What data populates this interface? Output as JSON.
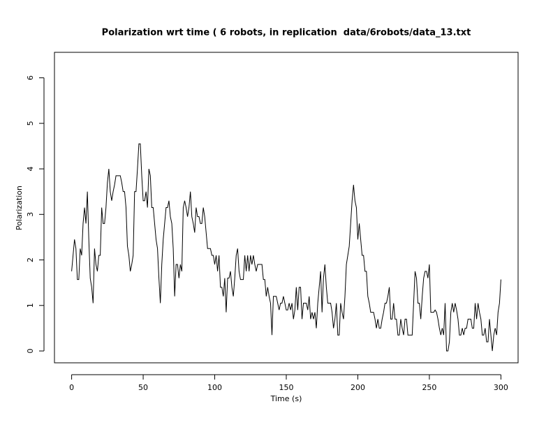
{
  "chart_data": {
    "type": "line",
    "title": "Polarization wrt time ( 6 robots, in replication  data/6robots/data_13.txt",
    "x_label": "Time (s)",
    "y_label": "Polarization",
    "color": "#000000",
    "xlim": [
      -12,
      312
    ],
    "ylim": [
      -0.26,
      6.56
    ],
    "xticks": [
      0,
      50,
      100,
      150,
      200,
      250,
      300
    ],
    "yticks": [
      0,
      1,
      2,
      3,
      4,
      5,
      6
    ],
    "x": [
      0,
      1,
      2,
      3,
      4,
      5,
      6,
      7,
      8,
      9,
      10,
      11,
      12,
      13,
      14,
      15,
      16,
      17,
      18,
      19,
      20,
      21,
      22,
      23,
      24,
      25,
      26,
      27,
      28,
      29,
      30,
      31,
      32,
      33,
      34,
      35,
      36,
      37,
      38,
      39,
      40,
      41,
      42,
      43,
      44,
      45,
      46,
      47,
      48,
      49,
      50,
      51,
      52,
      53,
      54,
      55,
      56,
      57,
      58,
      59,
      60,
      61,
      62,
      63,
      64,
      65,
      66,
      67,
      68,
      69,
      70,
      71,
      72,
      73,
      74,
      75,
      76,
      77,
      78,
      79,
      80,
      81,
      82,
      83,
      84,
      85,
      86,
      87,
      88,
      89,
      90,
      91,
      92,
      93,
      94,
      95,
      96,
      97,
      98,
      99,
      100,
      101,
      102,
      103,
      104,
      105,
      106,
      107,
      108,
      109,
      110,
      111,
      112,
      113,
      114,
      115,
      116,
      117,
      118,
      119,
      120,
      121,
      122,
      123,
      124,
      125,
      126,
      127,
      128,
      129,
      130,
      131,
      132,
      133,
      134,
      135,
      136,
      137,
      138,
      139,
      140,
      141,
      142,
      143,
      144,
      145,
      146,
      147,
      148,
      149,
      150,
      151,
      152,
      153,
      154,
      155,
      156,
      157,
      158,
      159,
      160,
      161,
      162,
      163,
      164,
      165,
      166,
      167,
      168,
      169,
      170,
      171,
      172,
      173,
      174,
      175,
      176,
      177,
      178,
      179,
      180,
      181,
      182,
      183,
      184,
      185,
      186,
      187,
      188,
      189,
      190,
      191,
      192,
      193,
      194,
      195,
      196,
      197,
      198,
      199,
      200,
      201,
      202,
      203,
      204,
      205,
      206,
      207,
      208,
      209,
      210,
      211,
      212,
      213,
      214,
      215,
      216,
      217,
      218,
      219,
      220,
      221,
      222,
      223,
      224,
      225,
      226,
      227,
      228,
      229,
      230,
      231,
      232,
      233,
      234,
      235,
      236,
      237,
      238,
      239,
      240,
      241,
      242,
      243,
      244,
      245,
      246,
      247,
      248,
      249,
      250,
      251,
      252,
      253,
      254,
      255,
      256,
      257,
      258,
      259,
      260,
      261,
      262,
      263,
      264,
      265,
      266,
      267,
      268,
      269,
      270,
      271,
      272,
      273,
      274,
      275,
      276,
      277,
      278,
      279,
      280,
      281,
      282,
      283,
      284,
      285,
      286,
      287,
      288,
      289,
      290,
      291,
      292,
      293,
      294,
      295,
      296,
      297,
      298,
      299,
      300
    ],
    "values": [
      1.75,
      2.1,
      2.45,
      2.25,
      1.57,
      1.57,
      2.25,
      2.1,
      2.8,
      3.15,
      2.8,
      3.5,
      2.45,
      1.6,
      1.4,
      1.05,
      2.25,
      1.9,
      1.75,
      2.1,
      2.1,
      3.15,
      2.8,
      2.8,
      3.15,
      3.7,
      4.0,
      3.5,
      3.3,
      3.5,
      3.65,
      3.85,
      3.85,
      3.85,
      3.85,
      3.7,
      3.5,
      3.5,
      3.15,
      2.3,
      2.1,
      1.75,
      1.9,
      2.1,
      3.5,
      3.5,
      4.0,
      4.55,
      4.55,
      3.85,
      3.3,
      3.3,
      3.5,
      3.15,
      4.0,
      3.85,
      3.15,
      3.15,
      2.8,
      2.45,
      2.25,
      1.6,
      1.05,
      1.9,
      2.45,
      2.8,
      3.15,
      3.15,
      3.3,
      2.95,
      2.8,
      2.25,
      1.2,
      1.9,
      1.9,
      1.6,
      1.9,
      1.75,
      3.15,
      3.3,
      3.15,
      2.95,
      3.15,
      3.5,
      2.95,
      2.8,
      2.6,
      3.15,
      2.95,
      2.95,
      2.8,
      2.8,
      3.15,
      2.95,
      2.6,
      2.25,
      2.25,
      2.25,
      2.1,
      2.1,
      1.9,
      2.1,
      1.75,
      2.1,
      1.4,
      1.4,
      1.2,
      1.6,
      0.85,
      1.6,
      1.6,
      1.75,
      1.4,
      1.2,
      1.6,
      2.1,
      2.25,
      1.75,
      1.57,
      1.57,
      1.57,
      2.1,
      1.75,
      2.1,
      1.75,
      2.1,
      1.9,
      2.1,
      1.9,
      1.75,
      1.9,
      1.9,
      1.9,
      1.9,
      1.57,
      1.57,
      1.2,
      1.4,
      1.2,
      1.05,
      0.35,
      1.2,
      1.2,
      1.2,
      1.05,
      0.9,
      1.05,
      1.05,
      1.2,
      1.05,
      0.9,
      0.9,
      1.05,
      0.9,
      1.05,
      0.7,
      0.9,
      1.4,
      0.9,
      1.4,
      1.4,
      0.7,
      1.05,
      1.05,
      1.05,
      0.9,
      1.2,
      0.7,
      0.85,
      0.7,
      0.85,
      0.5,
      1.05,
      1.4,
      1.75,
      0.85,
      1.6,
      1.9,
      1.4,
      1.05,
      1.05,
      1.05,
      0.85,
      0.5,
      0.7,
      1.05,
      0.35,
      0.35,
      1.05,
      0.85,
      0.7,
      1.2,
      1.9,
      2.1,
      2.3,
      2.8,
      3.3,
      3.65,
      3.3,
      3.15,
      2.45,
      2.8,
      2.45,
      2.1,
      2.1,
      1.75,
      1.75,
      1.2,
      1.05,
      0.85,
      0.85,
      0.85,
      0.7,
      0.5,
      0.7,
      0.5,
      0.5,
      0.7,
      0.85,
      1.05,
      1.05,
      1.2,
      1.4,
      0.7,
      0.7,
      1.05,
      0.7,
      0.7,
      0.35,
      0.35,
      0.7,
      0.5,
      0.35,
      0.7,
      0.7,
      0.35,
      0.35,
      0.35,
      0.35,
      1.05,
      1.75,
      1.6,
      1.05,
      1.05,
      0.7,
      1.2,
      1.6,
      1.75,
      1.75,
      1.6,
      1.9,
      0.85,
      0.85,
      0.85,
      0.9,
      0.85,
      0.7,
      0.5,
      0.35,
      0.5,
      0.35,
      1.05,
      0,
      0,
      0.2,
      0.85,
      1.05,
      0.85,
      1.05,
      0.9,
      0.7,
      0.35,
      0.35,
      0.5,
      0.35,
      0.5,
      0.5,
      0.7,
      0.7,
      0.7,
      0.5,
      0.5,
      1.05,
      0.7,
      1.05,
      0.85,
      0.7,
      0.35,
      0.35,
      0.5,
      0.2,
      0.2,
      0.7,
      0.35,
      0,
      0.35,
      0.5,
      0.35,
      0.85,
      1.05,
      1.57
    ]
  }
}
